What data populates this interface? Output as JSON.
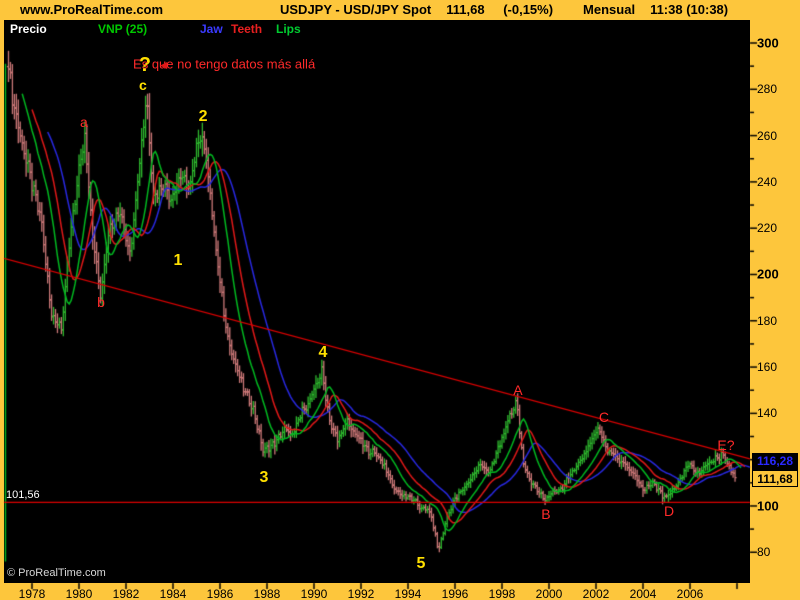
{
  "header": {
    "site": "www.ProRealTime.com",
    "title": "USDJPY - USD/JPY Spot",
    "last": "111,68",
    "change": "(-0,15%)",
    "period": "Mensual",
    "clock": "11:38 (10:38)"
  },
  "legend": {
    "price": "Precio",
    "indicator": "VNP (25)",
    "jaw": "Jaw",
    "teeth": "Teeth",
    "lips": "Lips"
  },
  "watermark": "© ProRealTime.com",
  "colors": {
    "frame": "#fdc63c",
    "plot_bg": "#000000",
    "bar_up": "#2eb82e",
    "bar_down": "#cc7878",
    "jaw": "#2828e0",
    "teeth": "#e01818",
    "lips": "#00b820",
    "trend": "#dd0000",
    "support": "#dd0000",
    "label_yellow": "#ffe000",
    "label_red": "#ff2a2a",
    "jaw_box_text": "#2a2aff"
  },
  "price_boxes": {
    "jaw_value_text": "116,28",
    "jaw_value": 116.28,
    "last_value_text": "111,68",
    "last_value": 111.68
  },
  "chart_data": {
    "type": "candlestick",
    "title": "USDJPY - USD/JPY Spot",
    "timeframe": "Mensual",
    "last_close": 111.68,
    "x_axis": {
      "tick_years": [
        1978,
        1980,
        1982,
        1984,
        1986,
        1988,
        1990,
        1992,
        1994,
        1996,
        1998,
        2000,
        2002,
        2004,
        2006
      ],
      "min_year": 1976.8,
      "max_year": 2008.6
    },
    "y_axis": {
      "major_ticks": [
        300,
        280,
        260,
        240,
        220,
        200,
        180,
        160,
        140,
        120,
        100,
        80
      ],
      "bold_ticks": [
        300,
        200,
        100
      ],
      "minor_step": 10,
      "range": [
        67,
        310
      ]
    },
    "bars": {
      "start_year": 1977.0,
      "end_year": 2007.95,
      "interval_months": 1
    },
    "series_anchors_monthly_close": [
      [
        1977.0,
        290
      ],
      [
        1977.17,
        275
      ],
      [
        1977.58,
        258
      ],
      [
        1978.0,
        238
      ],
      [
        1978.42,
        222
      ],
      [
        1978.83,
        182
      ],
      [
        1979.25,
        177
      ],
      [
        1979.67,
        222
      ],
      [
        1980.0,
        243
      ],
      [
        1980.25,
        258
      ],
      [
        1980.58,
        218
      ],
      [
        1980.92,
        190
      ],
      [
        1981.25,
        218
      ],
      [
        1981.75,
        228
      ],
      [
        1982.17,
        208
      ],
      [
        1982.5,
        242
      ],
      [
        1982.87,
        277
      ],
      [
        1983.17,
        233
      ],
      [
        1983.58,
        240
      ],
      [
        1983.92,
        232
      ],
      [
        1984.33,
        243
      ],
      [
        1984.75,
        238
      ],
      [
        1985.0,
        253
      ],
      [
        1985.2,
        262
      ],
      [
        1985.5,
        245
      ],
      [
        1985.8,
        212
      ],
      [
        1986.2,
        180
      ],
      [
        1986.6,
        163
      ],
      [
        1987.0,
        150
      ],
      [
        1987.4,
        143
      ],
      [
        1987.85,
        123
      ],
      [
        1988.3,
        127
      ],
      [
        1988.7,
        133
      ],
      [
        1989.1,
        130
      ],
      [
        1989.5,
        142
      ],
      [
        1989.8,
        144
      ],
      [
        1990.1,
        152
      ],
      [
        1990.33,
        159
      ],
      [
        1990.7,
        135
      ],
      [
        1991.0,
        128
      ],
      [
        1991.4,
        137
      ],
      [
        1991.8,
        130
      ],
      [
        1992.2,
        125
      ],
      [
        1992.6,
        123
      ],
      [
        1993.0,
        117
      ],
      [
        1993.4,
        108
      ],
      [
        1993.8,
        104
      ],
      [
        1994.2,
        103
      ],
      [
        1994.6,
        99
      ],
      [
        1994.95,
        97
      ],
      [
        1995.3,
        81
      ],
      [
        1995.6,
        93
      ],
      [
        1995.9,
        101
      ],
      [
        1996.3,
        107
      ],
      [
        1996.7,
        112
      ],
      [
        1997.1,
        118
      ],
      [
        1997.5,
        115
      ],
      [
        1997.9,
        126
      ],
      [
        1998.3,
        138
      ],
      [
        1998.62,
        146
      ],
      [
        1998.9,
        117
      ],
      [
        1999.3,
        110
      ],
      [
        1999.85,
        102
      ],
      [
        2000.2,
        107
      ],
      [
        2000.6,
        108
      ],
      [
        2001.0,
        115
      ],
      [
        2001.5,
        122
      ],
      [
        2001.8,
        128
      ],
      [
        2002.1,
        134
      ],
      [
        2002.5,
        124
      ],
      [
        2002.9,
        120
      ],
      [
        2003.3,
        118
      ],
      [
        2003.7,
        111
      ],
      [
        2004.0,
        107
      ],
      [
        2004.4,
        110
      ],
      [
        2004.9,
        103
      ],
      [
        2005.3,
        107
      ],
      [
        2005.7,
        113
      ],
      [
        2005.95,
        119
      ],
      [
        2006.3,
        114
      ],
      [
        2006.7,
        117
      ],
      [
        2007.0,
        120
      ],
      [
        2007.4,
        123
      ],
      [
        2007.7,
        115
      ],
      [
        2007.92,
        111.68
      ]
    ],
    "alligator": {
      "jaw": {
        "period": 13,
        "shift": 8,
        "label": "Jaw"
      },
      "teeth": {
        "period": 8,
        "shift": 5,
        "label": "Teeth"
      },
      "lips": {
        "period": 5,
        "shift": 3,
        "label": "Lips"
      }
    },
    "trend_line": {
      "from": {
        "year": 1976.8,
        "price": 207
      },
      "to": {
        "year": 2008.55,
        "price": 120.3
      }
    },
    "support_line": {
      "price": 101.56,
      "label": "101,56"
    },
    "vertical_line": {
      "year": 1976.87,
      "from_price": 291,
      "to_price": 76
    },
    "wave_labels": [
      {
        "text": "a",
        "kind": "red",
        "year": 1980.21,
        "price": 266
      },
      {
        "text": "b",
        "kind": "red",
        "year": 1980.94,
        "price": 188
      },
      {
        "text": "c",
        "kind": "ysmall",
        "year": 1982.72,
        "price": 282
      },
      {
        "text": "1",
        "kind": "yellow",
        "year": 1984.21,
        "price": 206
      },
      {
        "text": "2",
        "kind": "yellow",
        "year": 1985.28,
        "price": 268
      },
      {
        "text": "3",
        "kind": "yellow",
        "year": 1987.87,
        "price": 112
      },
      {
        "text": "4",
        "kind": "yellow",
        "year": 1990.38,
        "price": 166
      },
      {
        "text": "5",
        "kind": "yellow",
        "year": 1994.55,
        "price": 75
      },
      {
        "text": "A",
        "kind": "red",
        "year": 1998.68,
        "price": 150
      },
      {
        "text": "B",
        "kind": "red",
        "year": 1999.87,
        "price": 96.5
      },
      {
        "text": "C",
        "kind": "red",
        "year": 2002.34,
        "price": 138.5
      },
      {
        "text": "D",
        "kind": "red",
        "year": 2005.11,
        "price": 98
      },
      {
        "text": "E?",
        "kind": "red",
        "year": 2007.53,
        "price": 126.5
      },
      {
        "text": "?",
        "kind": "question",
        "year": 1982.8,
        "price": 290.5
      }
    ],
    "annotation": {
      "text": "Es que no tengo datos más allá",
      "year": 1982.3,
      "price": 291
    },
    "arrow": {
      "glyph": "◄",
      "year": 1983.6,
      "price": 290.3
    }
  }
}
